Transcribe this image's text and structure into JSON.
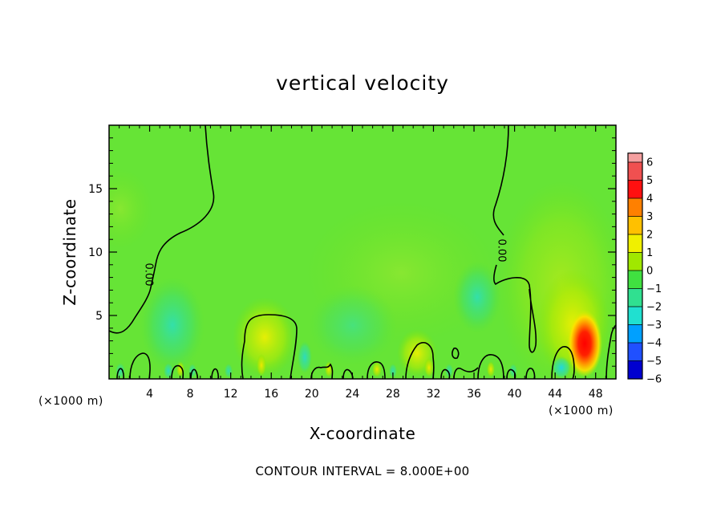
{
  "chart_data": {
    "type": "heatmap",
    "title": "vertical velocity",
    "xlabel": "X-coordinate",
    "ylabel": "Z-coordinate",
    "x_unit_label_left": "(×1000 m)",
    "x_unit_label_right": "(×1000 m)",
    "xlim": [
      0,
      50
    ],
    "ylim": [
      0,
      20
    ],
    "x_ticks": [
      4,
      8,
      12,
      16,
      20,
      24,
      28,
      32,
      36,
      40,
      44,
      48
    ],
    "y_ticks": [
      5,
      10,
      15
    ],
    "grid": false,
    "contour_interval_text": "CONTOUR INTERVAL = 8.000E+00",
    "contour_label": "0.00",
    "colorbar": {
      "levels": [
        6,
        5,
        4,
        3,
        2,
        1,
        0,
        -1,
        -2,
        -3,
        -4,
        -5,
        -6
      ],
      "colors": [
        "#f5a0a0",
        "#f05050",
        "#ff1010",
        "#ff8000",
        "#ffc000",
        "#f0f000",
        "#a0e800",
        "#40e040",
        "#30e090",
        "#20e0d0",
        "#00a0ff",
        "#2050ff",
        "#0000d0",
        "#6000b0"
      ]
    },
    "features": [
      {
        "kind": "updraft",
        "x": 46.5,
        "z": 3,
        "w_max": 6
      },
      {
        "kind": "downdraft",
        "x": 5,
        "z": 4,
        "w_min": -2
      },
      {
        "kind": "downdraft",
        "x": 36,
        "z": 6,
        "w_min": -2
      }
    ]
  }
}
